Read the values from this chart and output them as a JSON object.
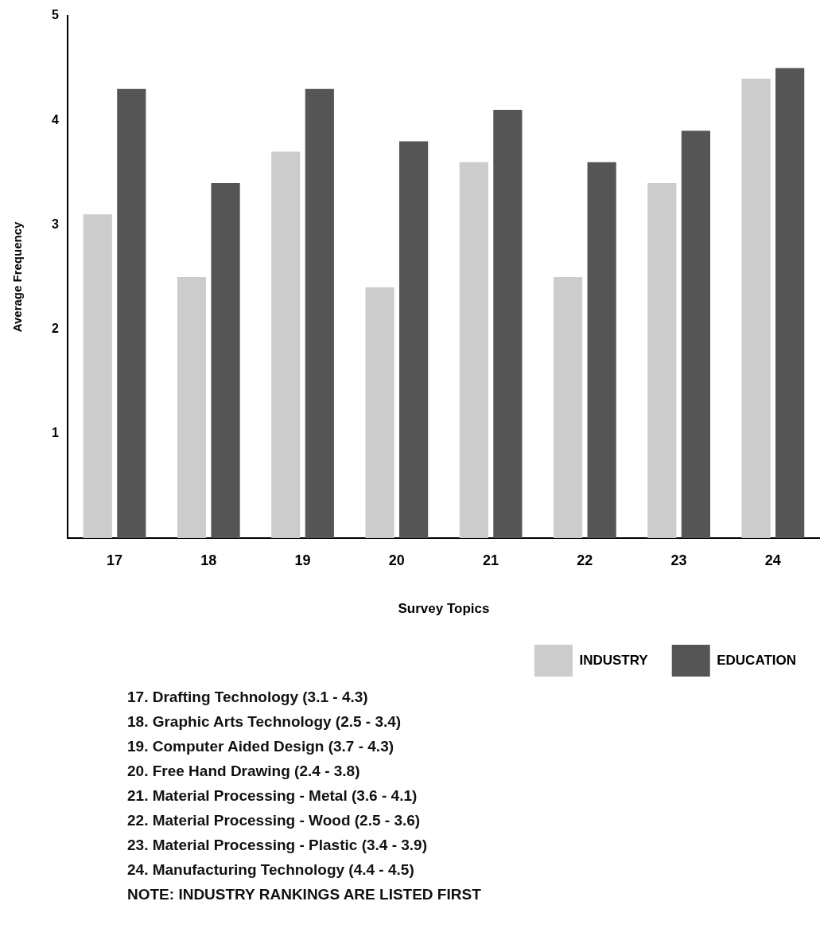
{
  "chart_data": {
    "type": "bar",
    "xlabel": "Survey Topics",
    "ylabel": "Average Frequency",
    "categories": [
      "17",
      "18",
      "19",
      "20",
      "21",
      "22",
      "23",
      "24"
    ],
    "series": [
      {
        "name": "INDUSTRY",
        "color": "#cccccc",
        "values": [
          3.1,
          2.5,
          3.7,
          2.4,
          3.6,
          2.5,
          3.4,
          4.4
        ]
      },
      {
        "name": "EDUCATION",
        "color": "#555555",
        "values": [
          4.3,
          3.4,
          4.3,
          3.8,
          4.1,
          3.6,
          3.9,
          4.5
        ]
      }
    ],
    "ylim": [
      0,
      5
    ],
    "yticks": [
      1,
      2,
      3,
      4,
      5
    ],
    "grid": false,
    "legend": "bottom right",
    "annotations": [
      "17. Drafting Technology  (3.1 - 4.3)",
      "18. Graphic Arts Technology  (2.5 - 3.4)",
      "19. Computer Aided Design  (3.7 - 4.3)",
      "20. Free Hand Drawing  (2.4 - 3.8)",
      "21. Material Processing - Metal  (3.6 - 4.1)",
      "22. Material Processing - Wood  (2.5 - 3.6)",
      "23. Material Processing - Plastic  (3.4 - 3.9)",
      "24. Manufacturing Technology  (4.4 - 4.5)",
      "NOTE: INDUSTRY RANKINGS ARE LISTED FIRST"
    ]
  }
}
